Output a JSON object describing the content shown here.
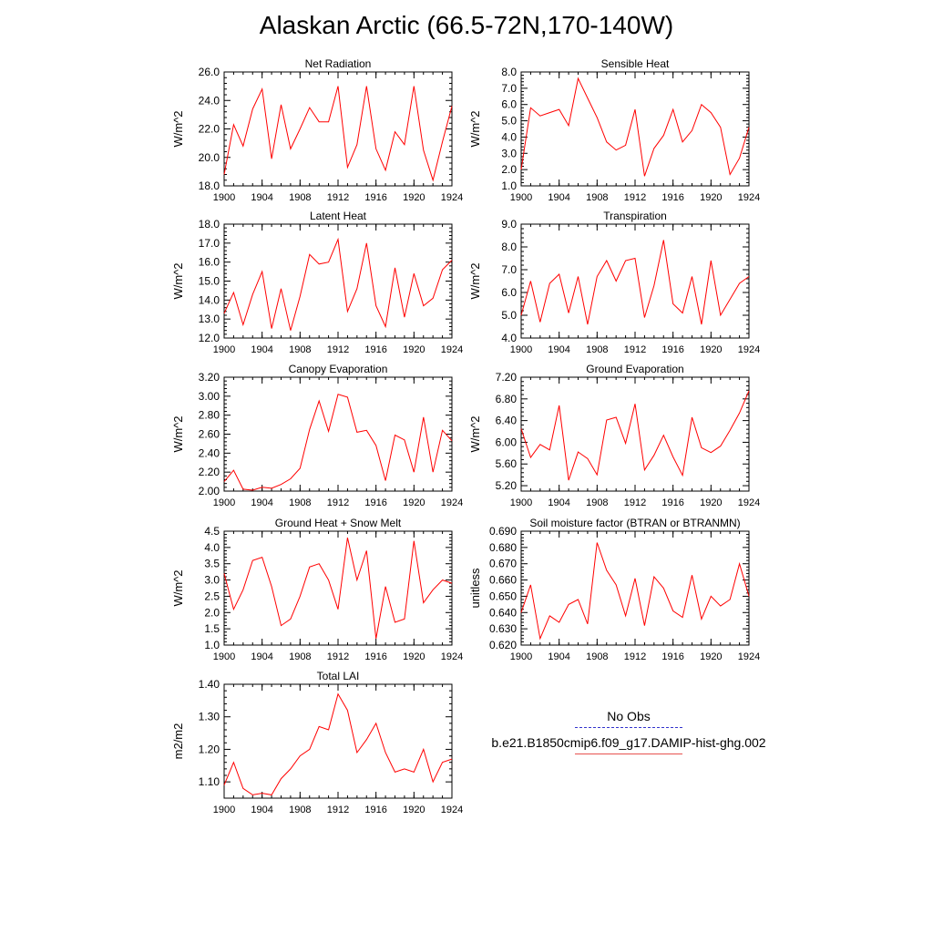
{
  "title": "Alaskan Arctic (66.5-72N,170-140W)",
  "colors": {
    "model_line": "#ff0000",
    "obs_line": "#3333cc",
    "axis": "#000000"
  },
  "legend": {
    "obs_label": "No Obs",
    "model_label": "b.e21.B1850cmip6.f09_g17.DAMIP-hist-ghg.002"
  },
  "chart_data": [
    {
      "type": "line",
      "title": "Net Radiation",
      "ylabel": "W/m^2",
      "xlim": [
        1900,
        1924
      ],
      "ylim": [
        18.0,
        26.0
      ],
      "xticks": [
        1900,
        1904,
        1908,
        1912,
        1916,
        1920,
        1924
      ],
      "yticks": [
        "18.0",
        "20.0",
        "22.0",
        "24.0",
        "26.0"
      ],
      "x": [
        1900,
        1901,
        1902,
        1903,
        1904,
        1905,
        1906,
        1907,
        1908,
        1909,
        1910,
        1911,
        1912,
        1913,
        1914,
        1915,
        1916,
        1917,
        1918,
        1919,
        1920,
        1921,
        1922,
        1923,
        1924
      ],
      "series": [
        {
          "values": [
            18.8,
            22.3,
            20.8,
            23.4,
            24.8,
            19.9,
            23.7,
            20.6,
            22.0,
            23.5,
            22.5,
            22.5,
            25.0,
            19.3,
            20.9,
            25.0,
            20.6,
            19.1,
            21.8,
            20.9,
            25.0,
            20.5,
            18.4,
            21.1,
            23.6
          ]
        }
      ]
    },
    {
      "type": "line",
      "title": "Sensible Heat",
      "ylabel": "W/m^2",
      "xlim": [
        1900,
        1924
      ],
      "ylim": [
        1.0,
        8.0
      ],
      "xticks": [
        1900,
        1904,
        1908,
        1912,
        1916,
        1920,
        1924
      ],
      "yticks": [
        "1.0",
        "2.0",
        "3.0",
        "4.0",
        "5.0",
        "6.0",
        "7.0",
        "8.0"
      ],
      "x": [
        1900,
        1901,
        1902,
        1903,
        1904,
        1905,
        1906,
        1907,
        1908,
        1909,
        1910,
        1911,
        1912,
        1913,
        1914,
        1915,
        1916,
        1917,
        1918,
        1919,
        1920,
        1921,
        1922,
        1923,
        1924
      ],
      "series": [
        {
          "values": [
            2.0,
            5.8,
            5.3,
            5.5,
            5.7,
            4.7,
            7.6,
            6.4,
            5.2,
            3.7,
            3.2,
            3.5,
            5.7,
            1.6,
            3.3,
            4.1,
            5.7,
            3.7,
            4.4,
            6.0,
            5.5,
            4.6,
            1.7,
            2.7,
            4.6
          ]
        }
      ]
    },
    {
      "type": "line",
      "title": "Latent Heat",
      "ylabel": "W/m^2",
      "xlim": [
        1900,
        1924
      ],
      "ylim": [
        12.0,
        18.0
      ],
      "xticks": [
        1900,
        1904,
        1908,
        1912,
        1916,
        1920,
        1924
      ],
      "yticks": [
        "12.0",
        "13.0",
        "14.0",
        "15.0",
        "16.0",
        "17.0",
        "18.0"
      ],
      "x": [
        1900,
        1901,
        1902,
        1903,
        1904,
        1905,
        1906,
        1907,
        1908,
        1909,
        1910,
        1911,
        1912,
        1913,
        1914,
        1915,
        1916,
        1917,
        1918,
        1919,
        1920,
        1921,
        1922,
        1923,
        1924
      ],
      "series": [
        {
          "values": [
            13.3,
            14.4,
            12.7,
            14.3,
            15.5,
            12.5,
            14.6,
            12.4,
            14.2,
            16.4,
            15.9,
            16.0,
            17.2,
            13.4,
            14.6,
            17.0,
            13.7,
            12.6,
            15.7,
            13.1,
            15.4,
            13.7,
            14.1,
            15.6,
            16.1
          ]
        }
      ]
    },
    {
      "type": "line",
      "title": "Transpiration",
      "ylabel": "W/m^2",
      "xlim": [
        1900,
        1924
      ],
      "ylim": [
        4.0,
        9.0
      ],
      "xticks": [
        1900,
        1904,
        1908,
        1912,
        1916,
        1920,
        1924
      ],
      "yticks": [
        "4.0",
        "5.0",
        "6.0",
        "7.0",
        "8.0",
        "9.0"
      ],
      "x": [
        1900,
        1901,
        1902,
        1903,
        1904,
        1905,
        1906,
        1907,
        1908,
        1909,
        1910,
        1911,
        1912,
        1913,
        1914,
        1915,
        1916,
        1917,
        1918,
        1919,
        1920,
        1921,
        1922,
        1923,
        1924
      ],
      "series": [
        {
          "values": [
            5.0,
            6.5,
            4.7,
            6.4,
            6.8,
            5.1,
            6.7,
            4.6,
            6.7,
            7.4,
            6.5,
            7.4,
            7.5,
            4.9,
            6.3,
            8.3,
            5.5,
            5.1,
            6.7,
            4.6,
            7.4,
            5.0,
            5.7,
            6.4,
            6.7
          ]
        }
      ]
    },
    {
      "type": "line",
      "title": "Canopy Evaporation",
      "ylabel": "W/m^2",
      "xlim": [
        1900,
        1924
      ],
      "ylim": [
        2.0,
        3.2
      ],
      "xticks": [
        1900,
        1904,
        1908,
        1912,
        1916,
        1920,
        1924
      ],
      "yticks": [
        "2.00",
        "2.20",
        "2.40",
        "2.60",
        "2.80",
        "3.00",
        "3.20"
      ],
      "x": [
        1900,
        1901,
        1902,
        1903,
        1904,
        1905,
        1906,
        1907,
        1908,
        1909,
        1910,
        1911,
        1912,
        1913,
        1914,
        1915,
        1916,
        1917,
        1918,
        1919,
        1920,
        1921,
        1922,
        1923,
        1924
      ],
      "series": [
        {
          "values": [
            2.1,
            2.22,
            2.02,
            2.01,
            2.04,
            2.03,
            2.07,
            2.13,
            2.24,
            2.65,
            2.95,
            2.63,
            3.02,
            2.99,
            2.62,
            2.64,
            2.48,
            2.11,
            2.59,
            2.54,
            2.2,
            2.78,
            2.2,
            2.64,
            2.53
          ]
        }
      ]
    },
    {
      "type": "line",
      "title": "Ground Evaporation",
      "ylabel": "W/m^2",
      "xlim": [
        1900,
        1924
      ],
      "ylim": [
        5.1,
        7.2
      ],
      "xticks": [
        1900,
        1904,
        1908,
        1912,
        1916,
        1920,
        1924
      ],
      "yticks": [
        "5.20",
        "5.60",
        "6.00",
        "6.40",
        "6.80",
        "7.20"
      ],
      "x": [
        1900,
        1901,
        1902,
        1903,
        1904,
        1905,
        1906,
        1907,
        1908,
        1909,
        1910,
        1911,
        1912,
        1913,
        1914,
        1915,
        1916,
        1917,
        1918,
        1919,
        1920,
        1921,
        1922,
        1923,
        1924
      ],
      "series": [
        {
          "values": [
            6.25,
            5.72,
            5.96,
            5.86,
            6.68,
            5.3,
            5.82,
            5.7,
            5.4,
            6.41,
            6.46,
            5.98,
            6.71,
            5.49,
            5.76,
            6.13,
            5.73,
            5.39,
            6.46,
            5.9,
            5.81,
            5.93,
            6.22,
            6.54,
            6.95
          ]
        }
      ]
    },
    {
      "type": "line",
      "title": "Ground Heat + Snow Melt",
      "ylabel": "W/m^2",
      "xlim": [
        1900,
        1924
      ],
      "ylim": [
        1.0,
        4.5
      ],
      "xticks": [
        1900,
        1904,
        1908,
        1912,
        1916,
        1920,
        1924
      ],
      "yticks": [
        "1.0",
        "1.5",
        "2.0",
        "2.5",
        "3.0",
        "3.5",
        "4.0",
        "4.5"
      ],
      "x": [
        1900,
        1901,
        1902,
        1903,
        1904,
        1905,
        1906,
        1907,
        1908,
        1909,
        1910,
        1911,
        1912,
        1913,
        1914,
        1915,
        1916,
        1917,
        1918,
        1919,
        1920,
        1921,
        1922,
        1923,
        1924
      ],
      "series": [
        {
          "values": [
            3.2,
            2.1,
            2.7,
            3.6,
            3.7,
            2.8,
            1.6,
            1.8,
            2.5,
            3.4,
            3.5,
            3.0,
            2.1,
            4.3,
            3.0,
            3.9,
            1.2,
            2.8,
            1.7,
            1.8,
            4.2,
            2.3,
            2.7,
            3.0,
            2.9
          ]
        }
      ]
    },
    {
      "type": "line",
      "title": "Soil moisture factor (BTRAN or BTRANMN)",
      "ylabel": "unitless",
      "xlim": [
        1900,
        1924
      ],
      "ylim": [
        0.62,
        0.69
      ],
      "xticks": [
        1900,
        1904,
        1908,
        1912,
        1916,
        1920,
        1924
      ],
      "yticks": [
        "0.620",
        "0.630",
        "0.640",
        "0.650",
        "0.660",
        "0.670",
        "0.680",
        "0.690"
      ],
      "x": [
        1900,
        1901,
        1902,
        1903,
        1904,
        1905,
        1906,
        1907,
        1908,
        1909,
        1910,
        1911,
        1912,
        1913,
        1914,
        1915,
        1916,
        1917,
        1918,
        1919,
        1920,
        1921,
        1922,
        1923,
        1924
      ],
      "series": [
        {
          "values": [
            0.64,
            0.657,
            0.624,
            0.638,
            0.634,
            0.645,
            0.648,
            0.633,
            0.683,
            0.666,
            0.657,
            0.638,
            0.661,
            0.632,
            0.662,
            0.655,
            0.641,
            0.637,
            0.663,
            0.636,
            0.65,
            0.644,
            0.648,
            0.67,
            0.65
          ]
        }
      ]
    },
    {
      "type": "line",
      "title": "Total LAI",
      "ylabel": "m2/m2",
      "xlim": [
        1900,
        1924
      ],
      "ylim": [
        1.05,
        1.4
      ],
      "xticks": [
        1900,
        1904,
        1908,
        1912,
        1916,
        1920,
        1924
      ],
      "yticks": [
        "1.10",
        "1.20",
        "1.30",
        "1.40"
      ],
      "x": [
        1900,
        1901,
        1902,
        1903,
        1904,
        1905,
        1906,
        1907,
        1908,
        1909,
        1910,
        1911,
        1912,
        1913,
        1914,
        1915,
        1916,
        1917,
        1918,
        1919,
        1920,
        1921,
        1922,
        1923,
        1924
      ],
      "series": [
        {
          "values": [
            1.09,
            1.16,
            1.08,
            1.06,
            1.065,
            1.06,
            1.11,
            1.14,
            1.18,
            1.2,
            1.27,
            1.26,
            1.37,
            1.32,
            1.19,
            1.23,
            1.28,
            1.19,
            1.13,
            1.14,
            1.13,
            1.2,
            1.1,
            1.16,
            1.17
          ]
        }
      ]
    }
  ]
}
